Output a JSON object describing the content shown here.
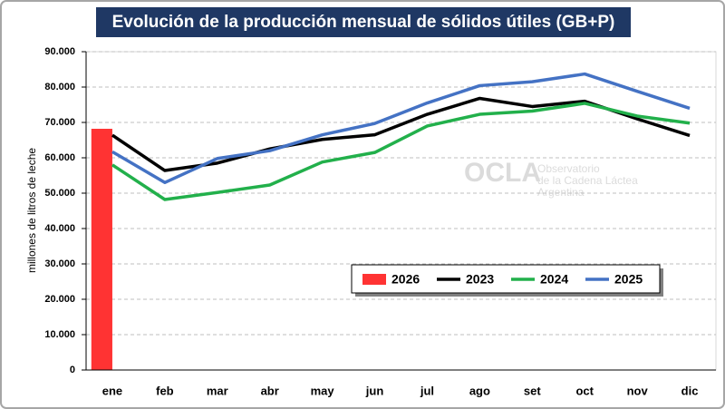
{
  "chart_data": {
    "type": "combo",
    "title": "Evolución de la producción mensual de sólidos útiles (GB+P)",
    "y_label": "millones de litros de leche",
    "categories": [
      "ene",
      "feb",
      "mar",
      "abr",
      "may",
      "jun",
      "jul",
      "ago",
      "set",
      "oct",
      "nov",
      "dic"
    ],
    "series": [
      {
        "name": "2026",
        "type": "bar",
        "color": "#ff3333",
        "values": [
          68200,
          null,
          null,
          null,
          null,
          null,
          null,
          null,
          null,
          null,
          null,
          null
        ]
      },
      {
        "name": "2023",
        "type": "line",
        "color": "#000000",
        "values": [
          66400,
          56400,
          58500,
          62500,
          65200,
          66500,
          72300,
          76800,
          74500,
          76000,
          71000,
          66300
        ]
      },
      {
        "name": "2024",
        "type": "line",
        "color": "#22b04b",
        "values": [
          58000,
          48200,
          50200,
          52300,
          58800,
          61500,
          69000,
          72300,
          73200,
          75400,
          71800,
          69800
        ]
      },
      {
        "name": "2025",
        "type": "line",
        "color": "#4472c4",
        "values": [
          61700,
          53000,
          59800,
          62000,
          66500,
          69700,
          75500,
          80400,
          81500,
          83700,
          78800,
          74000
        ]
      }
    ],
    "ylim": [
      0,
      90000
    ],
    "yticks": [
      0,
      {
        "value": 10000,
        "label": "10.000"
      },
      {
        "value": 20000,
        "label": "20.000"
      },
      {
        "value": 30000,
        "label": "30.000"
      },
      {
        "value": 40000,
        "label": "40.000"
      },
      {
        "value": 50000,
        "label": "50.000"
      },
      {
        "value": 60000,
        "label": "60.000"
      },
      {
        "value": 70000,
        "label": "70.000"
      },
      {
        "value": 80000,
        "label": "80.000"
      },
      {
        "value": 90000,
        "label": "90.000"
      }
    ],
    "grid": true
  },
  "watermark": {
    "name": "OCLA",
    "lines": [
      "Observatorio",
      "de la Cadena Láctea",
      "Argentina"
    ]
  }
}
